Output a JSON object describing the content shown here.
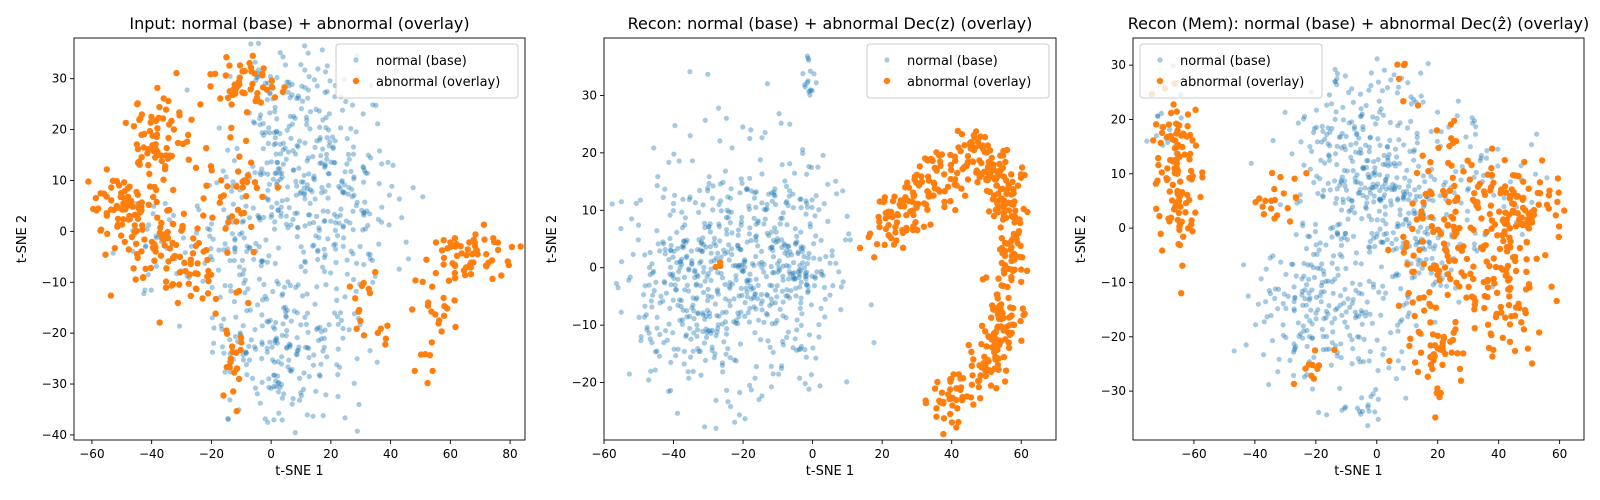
{
  "charts": [
    {
      "title": "Input: normal (base) + abnormal (overlay)",
      "xlabel": "t-SNE 1",
      "ylabel": "t-SNE 2",
      "xticks": [
        "−60",
        "−40",
        "−20",
        "0",
        "20",
        "40",
        "60",
        "80"
      ],
      "yticks": [
        "−40",
        "−30",
        "−20",
        "−10",
        "0",
        "10",
        "20",
        "30"
      ],
      "legend_location": "upper right",
      "legend": [
        "normal (base)",
        "abnormal (overlay)"
      ]
    },
    {
      "title": "Recon: normal (base) + abnormal Dec(z) (overlay)",
      "xlabel": "t-SNE 1",
      "ylabel": "t-SNE 2",
      "xticks": [
        "−60",
        "−40",
        "−20",
        "0",
        "20",
        "40",
        "60"
      ],
      "yticks": [
        "−20",
        "−10",
        "0",
        "10",
        "20",
        "30"
      ],
      "legend_location": "upper right",
      "legend": [
        "normal (base)",
        "abnormal (overlay)"
      ]
    },
    {
      "title": "Recon (Mem): normal (base) + abnormal Dec(ẑ) (overlay)",
      "xlabel": "t-SNE 1",
      "ylabel": "t-SNE 2",
      "xticks": [
        "−60",
        "−40",
        "−20",
        "0",
        "20",
        "40",
        "60"
      ],
      "yticks": [
        "−30",
        "−20",
        "−10",
        "0",
        "10",
        "20",
        "30"
      ],
      "legend_location": "upper left",
      "legend": [
        "normal (base)",
        "abnormal (overlay)"
      ]
    }
  ],
  "chart_data": [
    {
      "type": "scatter",
      "title": "Input: normal (base) + abnormal (overlay)",
      "xlabel": "t-SNE 1",
      "ylabel": "t-SNE 2",
      "xlim": [
        -66,
        85
      ],
      "ylim": [
        -41,
        38
      ],
      "xtick_values": [
        -60,
        -40,
        -20,
        0,
        20,
        40,
        60,
        80
      ],
      "ytick_values": [
        -40,
        -30,
        -20,
        -10,
        0,
        10,
        20,
        30
      ],
      "series": [
        {
          "name": "normal (base)",
          "color": "#1f77b4",
          "alpha": 0.4,
          "marker_radius": 2.6,
          "seed": 11,
          "clusters": [
            {
              "cx": 10,
              "cy": 12,
              "sx": 11,
              "sy": 11,
              "n": 300
            },
            {
              "cx": 5,
              "cy": -22,
              "sx": 12,
              "sy": 8,
              "n": 200
            },
            {
              "cx": -12,
              "cy": -3,
              "sx": 6,
              "sy": 9,
              "n": 80
            },
            {
              "cx": 28,
              "cy": 2,
              "sx": 9,
              "sy": 9,
              "n": 80
            },
            {
              "cx": -35,
              "cy": -3,
              "sx": 8,
              "sy": 5,
              "n": 40
            },
            {
              "cx": 5,
              "cy": 30,
              "sx": 7,
              "sy": 3,
              "n": 30
            }
          ]
        },
        {
          "name": "abnormal (overlay)",
          "color": "#ff7f0e",
          "alpha": 1.0,
          "marker_radius": 3.2,
          "seed": 23,
          "clusters": [
            {
              "cx": -50,
              "cy": 4,
              "sx": 6,
              "sy": 4,
              "n": 70
            },
            {
              "cx": -38,
              "cy": 18,
              "sx": 5,
              "sy": 4,
              "n": 70
            },
            {
              "cx": -10,
              "cy": 28,
              "sx": 6,
              "sy": 3,
              "n": 50
            },
            {
              "cx": -28,
              "cy": -6,
              "sx": 6,
              "sy": 5,
              "n": 50
            },
            {
              "cx": -40,
              "cy": -3,
              "sx": 5,
              "sy": 5,
              "n": 40
            },
            {
              "cx": -12,
              "cy": 6,
              "sx": 6,
              "sy": 6,
              "n": 40
            },
            {
              "cx": 65,
              "cy": -5,
              "sx": 7,
              "sy": 3,
              "n": 60
            },
            {
              "cx": 54,
              "cy": -16,
              "sx": 3,
              "sy": 5,
              "n": 25
            },
            {
              "cx": -13,
              "cy": -25,
              "sx": 2,
              "sy": 4,
              "n": 20
            },
            {
              "cx": 30,
              "cy": -13,
              "sx": 2,
              "sy": 3,
              "n": 12
            },
            {
              "cx": 37,
              "cy": -20,
              "sx": 1,
              "sy": 1,
              "n": 5
            }
          ]
        }
      ]
    },
    {
      "type": "scatter",
      "title": "Recon: normal (base) + abnormal Dec(z) (overlay)",
      "xlabel": "t-SNE 1",
      "ylabel": "t-SNE 2",
      "xlim": [
        -60,
        70
      ],
      "ylim": [
        -30,
        40
      ],
      "xtick_values": [
        -60,
        -40,
        -20,
        0,
        20,
        40,
        60
      ],
      "ytick_values": [
        -20,
        -10,
        0,
        10,
        20,
        30
      ],
      "series": [
        {
          "name": "normal (base)",
          "color": "#1f77b4",
          "alpha": 0.4,
          "marker_radius": 2.6,
          "seed": 37,
          "clusters": [
            {
              "cx": -20,
              "cy": 0,
              "sx": 13,
              "sy": 11,
              "n": 500
            },
            {
              "cx": -40,
              "cy": -5,
              "sx": 7,
              "sy": 8,
              "n": 120
            },
            {
              "cx": -5,
              "cy": 3,
              "sx": 6,
              "sy": 10,
              "n": 100
            },
            {
              "cx": -2,
              "cy": 33,
              "sx": 1.5,
              "sy": 2,
              "n": 15
            }
          ]
        },
        {
          "name": "abnormal (overlay)",
          "color": "#ff7f0e",
          "alpha": 1.0,
          "marker_radius": 3.2,
          "seed": 53,
          "arc": [
            [
              20,
              6
            ],
            [
              30,
              11
            ],
            [
              40,
              18
            ],
            [
              50,
              20
            ],
            [
              56,
              12
            ],
            [
              57,
              2
            ],
            [
              55,
              -10
            ],
            [
              48,
              -20
            ],
            [
              35,
              -25
            ]
          ],
          "arc_n": 450,
          "arc_spread": 2.6,
          "clusters": [
            {
              "cx": -27,
              "cy": 0,
              "sx": 0.4,
              "sy": 0.4,
              "n": 3
            }
          ]
        }
      ]
    },
    {
      "type": "scatter",
      "title": "Recon (Mem): normal (base) + abnormal Dec(ẑ) (overlay)",
      "xlabel": "t-SNE 1",
      "ylabel": "t-SNE 2",
      "xlim": [
        -80,
        68
      ],
      "ylim": [
        -39,
        35
      ],
      "xtick_values": [
        -60,
        -40,
        -20,
        0,
        20,
        40,
        60
      ],
      "ytick_values": [
        -30,
        -20,
        -10,
        0,
        10,
        20,
        30
      ],
      "series": [
        {
          "name": "normal (base)",
          "color": "#1f77b4",
          "alpha": 0.4,
          "marker_radius": 2.6,
          "seed": 71,
          "clusters": [
            {
              "cx": -5,
              "cy": 12,
              "sx": 12,
              "sy": 10,
              "n": 300
            },
            {
              "cx": -15,
              "cy": -15,
              "sx": 13,
              "sy": 8,
              "n": 220
            },
            {
              "cx": 15,
              "cy": 0,
              "sx": 10,
              "sy": 10,
              "n": 150
            },
            {
              "cx": 35,
              "cy": 8,
              "sx": 8,
              "sy": 6,
              "n": 50
            },
            {
              "cx": -68,
              "cy": 18,
              "sx": 3,
              "sy": 4,
              "n": 20
            },
            {
              "cx": -5,
              "cy": -33,
              "sx": 5,
              "sy": 2,
              "n": 20
            }
          ]
        },
        {
          "name": "abnormal (overlay)",
          "color": "#ff7f0e",
          "alpha": 1.0,
          "marker_radius": 3.2,
          "seed": 89,
          "clusters": [
            {
              "cx": -66,
              "cy": 10,
              "sx": 3.5,
              "sy": 7,
              "n": 110
            },
            {
              "cx": 45,
              "cy": 4,
              "sx": 8,
              "sy": 5,
              "n": 100
            },
            {
              "cx": 40,
              "cy": -12,
              "sx": 9,
              "sy": 6,
              "n": 100
            },
            {
              "cx": 25,
              "cy": 5,
              "sx": 6,
              "sy": 6,
              "n": 60
            },
            {
              "cx": 18,
              "cy": -24,
              "sx": 5,
              "sy": 4,
              "n": 40
            },
            {
              "cx": 15,
              "cy": -8,
              "sx": 6,
              "sy": 6,
              "n": 40
            },
            {
              "cx": -32,
              "cy": 5,
              "sx": 4,
              "sy": 3,
              "n": 20
            },
            {
              "cx": -22,
              "cy": -24,
              "sx": 3,
              "sy": 2,
              "n": 10
            },
            {
              "cx": 10,
              "cy": 26,
              "sx": 2,
              "sy": 2,
              "n": 6
            }
          ]
        }
      ]
    }
  ]
}
